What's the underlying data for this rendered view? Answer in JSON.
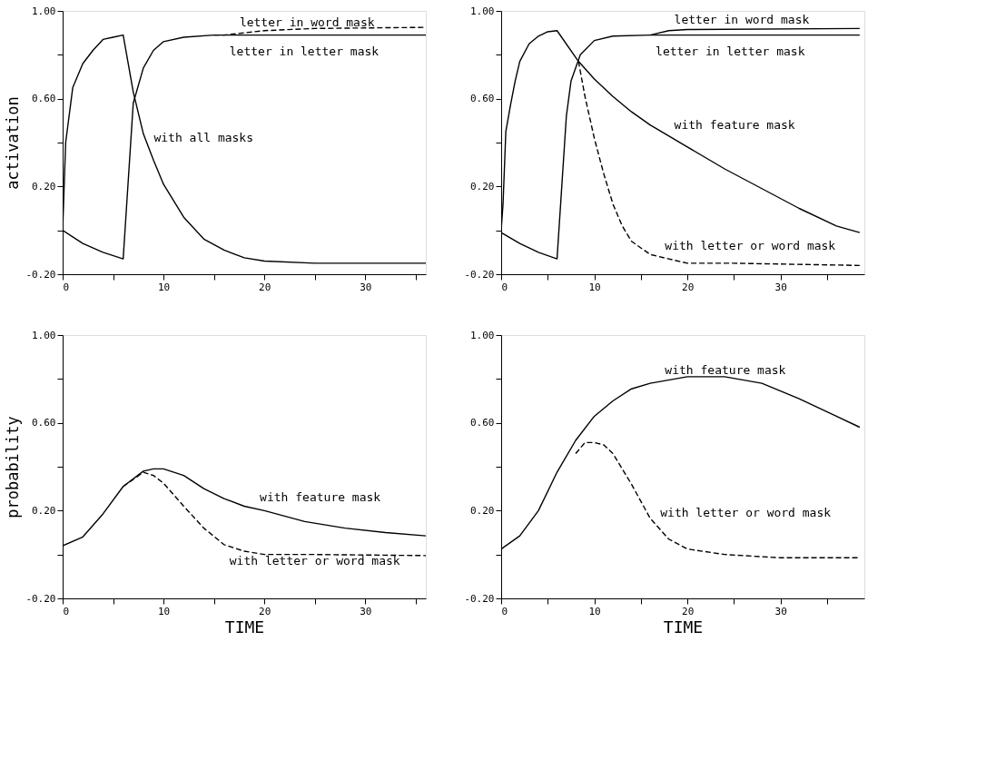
{
  "chart_data": [
    {
      "type": "line",
      "ylabel": "activation",
      "xlim": [
        0,
        36
      ],
      "ylim": [
        -0.2,
        1.0
      ],
      "grid": false,
      "tick_labels": true,
      "xticks": [
        0,
        {
          "value": 5,
          "label": null
        },
        10,
        {
          "value": 15,
          "label": null
        },
        20,
        {
          "value": 25,
          "label": null
        },
        30,
        {
          "value": 35,
          "label": null
        }
      ],
      "yticks": [
        {
          "value": -0.2,
          "label": "-0.20"
        },
        {
          "value": 0.0,
          "label": null
        },
        {
          "value": 0.2,
          "label": "0.20"
        },
        {
          "value": 0.4,
          "label": null
        },
        {
          "value": 0.6,
          "label": "0.60"
        },
        {
          "value": 0.8,
          "label": null
        },
        {
          "value": 1.0,
          "label": "1.00"
        }
      ],
      "series": [
        {
          "color": "#000000",
          "line_style": "solid",
          "x": [
            0,
            0.3,
            1,
            2,
            3,
            4,
            5,
            6,
            7,
            8,
            9,
            10,
            12,
            14,
            16,
            18,
            20,
            25,
            36
          ],
          "values": [
            0.0,
            0.4,
            0.65,
            0.76,
            0.82,
            0.87,
            0.88,
            0.89,
            0.63,
            0.44,
            0.32,
            0.21,
            0.06,
            -0.04,
            -0.09,
            -0.125,
            -0.14,
            -0.15,
            -0.15
          ]
        },
        {
          "color": "#000000",
          "line_style": "solid",
          "x": [
            0,
            2,
            4,
            6,
            7,
            8,
            9,
            10,
            12,
            15,
            36
          ],
          "values": [
            0.0,
            -0.06,
            -0.1,
            -0.13,
            0.58,
            0.74,
            0.82,
            0.86,
            0.88,
            0.89,
            0.89
          ]
        },
        {
          "color": "#000000",
          "line_style": "dashed",
          "x": [
            15,
            16,
            20,
            25,
            36
          ],
          "values": [
            0.89,
            0.89,
            0.91,
            0.92,
            0.925
          ]
        }
      ],
      "annotations": [
        {
          "text": "letter in word mask",
          "x": 17,
          "y": 0.895
        },
        {
          "text": "letter in letter mask",
          "x": 16,
          "y": 0.89
        },
        {
          "text": "with all masks",
          "x": 8.5,
          "y": 0.37
        }
      ]
    },
    {
      "type": "line",
      "xlim": [
        0,
        39
      ],
      "ylim": [
        -0.2,
        1.0
      ],
      "grid": false,
      "tick_labels": true,
      "xticks": [
        0,
        {
          "value": 5,
          "label": null
        },
        10,
        {
          "value": 15,
          "label": null
        },
        20,
        {
          "value": 25,
          "label": null
        },
        30,
        {
          "value": 35,
          "label": null
        }
      ],
      "yticks": [
        {
          "value": -0.2,
          "label": "-0.20"
        },
        {
          "value": 0.0,
          "label": null
        },
        {
          "value": 0.2,
          "label": "0.20"
        },
        {
          "value": 0.4,
          "label": null
        },
        {
          "value": 0.6,
          "label": "0.60"
        },
        {
          "value": 0.8,
          "label": null
        },
        {
          "value": 1.0,
          "label": "1.00"
        }
      ],
      "series": [
        {
          "color": "#000000",
          "line_style": "solid",
          "x": [
            0,
            0.2,
            0.5,
            1,
            1.5,
            2,
            3,
            4,
            5,
            6,
            8.3,
            10,
            12,
            14,
            16,
            20,
            24,
            28,
            32,
            36,
            38.5
          ],
          "values": [
            0.0,
            0.12,
            0.45,
            0.57,
            0.68,
            0.77,
            0.85,
            0.885,
            0.905,
            0.91,
            0.77,
            0.69,
            0.61,
            0.54,
            0.48,
            0.38,
            0.28,
            0.19,
            0.1,
            0.02,
            -0.01
          ]
        },
        {
          "color": "#000000",
          "line_style": "dashed",
          "x": [
            8.3,
            9,
            10,
            11,
            12,
            13,
            14,
            16,
            18,
            20,
            25,
            38.5
          ],
          "values": [
            0.77,
            0.61,
            0.42,
            0.26,
            0.12,
            0.02,
            -0.05,
            -0.11,
            -0.13,
            -0.15,
            -0.15,
            -0.16
          ]
        },
        {
          "color": "#000000",
          "line_style": "solid",
          "x": [
            0,
            2,
            4,
            6,
            7,
            7.5,
            8.5,
            10,
            12,
            16,
            38.5
          ],
          "values": [
            -0.01,
            -0.06,
            -0.1,
            -0.13,
            0.52,
            0.68,
            0.8,
            0.865,
            0.885,
            0.89,
            0.89
          ]
        },
        {
          "color": "#000000",
          "line_style": "solid",
          "x": [
            16,
            18,
            20,
            38.5
          ],
          "values": [
            0.89,
            0.91,
            0.915,
            0.92
          ]
        }
      ],
      "annotations": [
        {
          "text": "letter in word mask",
          "x": 18,
          "y": 0.91
        },
        {
          "text": "letter in letter mask",
          "x": 16,
          "y": 0.89
        },
        {
          "text": "with feature mask",
          "x": 18,
          "y": 0.43
        },
        {
          "text": "with letter or word mask",
          "x": 17,
          "y": -0.12
        }
      ]
    },
    {
      "type": "line",
      "ylabel": "probability",
      "xlabel": "TIME",
      "xlim": [
        0,
        36
      ],
      "ylim": [
        -0.2,
        1.0
      ],
      "grid": false,
      "tick_labels": true,
      "xticks": [
        0,
        {
          "value": 5,
          "label": null
        },
        10,
        {
          "value": 15,
          "label": null
        },
        20,
        {
          "value": 25,
          "label": null
        },
        30,
        {
          "value": 35,
          "label": null
        }
      ],
      "yticks": [
        {
          "value": -0.2,
          "label": "-0.20"
        },
        {
          "value": 0.0,
          "label": null
        },
        {
          "value": 0.2,
          "label": "0.20"
        },
        {
          "value": 0.4,
          "label": null
        },
        {
          "value": 0.6,
          "label": "0.60"
        },
        {
          "value": 0.8,
          "label": null
        },
        {
          "value": 1.0,
          "label": "1.00"
        }
      ],
      "series": [
        {
          "color": "#000000",
          "line_style": "solid",
          "x": [
            0,
            2,
            4,
            6,
            8,
            9,
            10,
            12,
            14,
            16,
            18,
            20,
            24,
            28,
            32,
            36
          ],
          "values": [
            0.04,
            0.08,
            0.185,
            0.31,
            0.38,
            0.39,
            0.39,
            0.36,
            0.3,
            0.255,
            0.22,
            0.2,
            0.15,
            0.12,
            0.1,
            0.085
          ]
        },
        {
          "color": "#000000",
          "line_style": "dashed",
          "x": [
            6,
            8,
            9,
            10,
            12,
            14,
            16,
            18,
            20,
            25,
            36
          ],
          "values": [
            0.31,
            0.375,
            0.36,
            0.325,
            0.22,
            0.12,
            0.045,
            0.015,
            0.0,
            0.0,
            -0.005
          ]
        }
      ],
      "annotations": [
        {
          "text": "with feature mask",
          "x": 19,
          "y": 0.21
        },
        {
          "text": "with letter or word mask",
          "x": 16,
          "y": 0.045
        }
      ]
    },
    {
      "type": "line",
      "xlabel": "TIME",
      "xlim": [
        0,
        39
      ],
      "ylim": [
        -0.2,
        1.0
      ],
      "grid": false,
      "tick_labels": true,
      "xticks": [
        0,
        {
          "value": 5,
          "label": null
        },
        10,
        {
          "value": 15,
          "label": null
        },
        20,
        {
          "value": 25,
          "label": null
        },
        30,
        {
          "value": 35,
          "label": null
        }
      ],
      "yticks": [
        {
          "value": -0.2,
          "label": "-0.20"
        },
        {
          "value": 0.0,
          "label": null
        },
        {
          "value": 0.2,
          "label": "0.20"
        },
        {
          "value": 0.4,
          "label": null
        },
        {
          "value": 0.6,
          "label": "0.60"
        },
        {
          "value": 0.8,
          "label": null
        },
        {
          "value": 1.0,
          "label": "1.00"
        }
      ],
      "series": [
        {
          "color": "#000000",
          "line_style": "solid",
          "x": [
            0,
            2,
            4,
            6,
            8,
            10,
            12,
            14,
            16,
            20,
            24,
            28,
            32,
            36,
            38.5
          ],
          "values": [
            0.025,
            0.085,
            0.2,
            0.375,
            0.52,
            0.63,
            0.7,
            0.755,
            0.78,
            0.81,
            0.81,
            0.78,
            0.71,
            0.63,
            0.58
          ]
        },
        {
          "color": "#000000",
          "line_style": "dashed",
          "x": [
            8,
            9,
            10,
            11,
            12,
            14,
            16,
            18,
            20,
            24,
            30,
            38.5
          ],
          "values": [
            0.46,
            0.51,
            0.51,
            0.5,
            0.46,
            0.32,
            0.165,
            0.07,
            0.025,
            0.0,
            -0.015,
            -0.015
          ]
        }
      ],
      "annotations": [
        {
          "text": "with feature mask",
          "x": 17,
          "y": 0.79
        },
        {
          "text": "with letter or word mask",
          "x": 16.5,
          "y": 0.14
        }
      ]
    }
  ]
}
